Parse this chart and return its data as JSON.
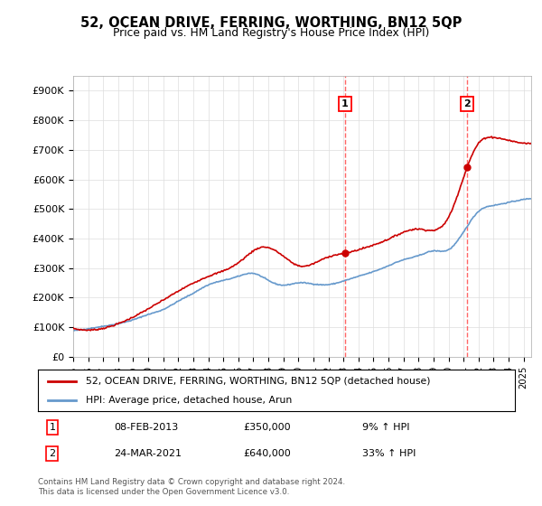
{
  "title": "52, OCEAN DRIVE, FERRING, WORTHING, BN12 5QP",
  "subtitle": "Price paid vs. HM Land Registry's House Price Index (HPI)",
  "legend_line1": "52, OCEAN DRIVE, FERRING, WORTHING, BN12 5QP (detached house)",
  "legend_line2": "HPI: Average price, detached house, Arun",
  "annotation1_num": "1",
  "annotation1_date": "08-FEB-2013",
  "annotation1_price": "£350,000",
  "annotation1_hpi": "9% ↑ HPI",
  "annotation2_num": "2",
  "annotation2_date": "24-MAR-2021",
  "annotation2_price": "£640,000",
  "annotation2_hpi": "33% ↑ HPI",
  "footer": "Contains HM Land Registry data © Crown copyright and database right 2024.\nThis data is licensed under the Open Government Licence v3.0.",
  "red_color": "#cc0000",
  "blue_color": "#6699cc",
  "dashed_color": "#ff6666",
  "background_color": "#ffffff",
  "ylim": [
    0,
    950000
  ],
  "yticks": [
    0,
    100000,
    200000,
    300000,
    400000,
    500000,
    600000,
    700000,
    800000,
    900000
  ],
  "ytick_labels": [
    "£0",
    "£100K",
    "£200K",
    "£300K",
    "£400K",
    "£500K",
    "£600K",
    "£700K",
    "£800K",
    "£900K"
  ],
  "sale1_year": 2013.1,
  "sale1_value": 350000,
  "sale2_year": 2021.23,
  "sale2_value": 640000,
  "xlim_start": 1995.0,
  "xlim_end": 2025.5,
  "hpi_years": [
    1995,
    1996,
    1997,
    1998,
    1999,
    2000,
    2001,
    2002,
    2003,
    2004,
    2005,
    2006,
    2007,
    2008,
    2009,
    2010,
    2011,
    2012,
    2013,
    2014,
    2015,
    2016,
    2017,
    2018,
    2019,
    2020,
    2021,
    2022,
    2023,
    2024,
    2025
  ],
  "hpi_values": [
    88000,
    95000,
    103000,
    112000,
    125000,
    143000,
    160000,
    188000,
    215000,
    243000,
    258000,
    272000,
    282000,
    258000,
    242000,
    250000,
    246000,
    244000,
    256000,
    272000,
    288000,
    308000,
    328000,
    342000,
    358000,
    362000,
    422000,
    492000,
    512000,
    522000,
    532000
  ],
  "red_anchors_x": [
    1995,
    2000,
    2004,
    2006,
    2007.5,
    2009,
    2010,
    2012,
    2013.1,
    2014,
    2016,
    2018,
    2020,
    2021.23,
    2022,
    2023,
    2024,
    2025.5
  ],
  "red_anchors_y": [
    96000,
    162000,
    272000,
    318000,
    370000,
    340000,
    308000,
    338000,
    350000,
    362000,
    398000,
    432000,
    472000,
    640000,
    722000,
    742000,
    732000,
    722000
  ]
}
